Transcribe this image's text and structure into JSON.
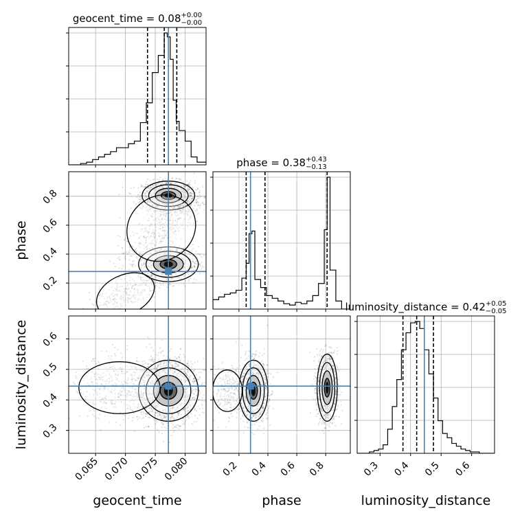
{
  "chart_data": {
    "type": "corner",
    "parameters": [
      "geocent_time",
      "phase",
      "luminosity_distance"
    ],
    "truth_color": "#4682b4",
    "truths": {
      "geocent_time": 0.0772,
      "phase": 0.28,
      "luminosity_distance": 0.445
    },
    "axes": {
      "geocent_time": {
        "lim": [
          0.0605,
          0.0835
        ],
        "ticks": [
          0.065,
          0.07,
          0.075,
          0.08
        ],
        "tick_labels": [
          "0.065",
          "0.070",
          "0.075",
          "0.080"
        ]
      },
      "phase": {
        "lim": [
          0.02,
          0.97
        ],
        "ticks": [
          0.2,
          0.4,
          0.6,
          0.8
        ],
        "tick_labels": [
          "0.2",
          "0.4",
          "0.6",
          "0.8"
        ]
      },
      "luminosity_distance": {
        "lim": [
          0.225,
          0.675
        ],
        "ticks": [
          0.3,
          0.4,
          0.5,
          0.6
        ],
        "tick_labels": [
          "0.3",
          "0.4",
          "0.5",
          "0.6"
        ]
      }
    },
    "titles": {
      "geocent_time": {
        "text": "geocent_time = 0.08",
        "plus": "+0.00",
        "minus": "−0.00"
      },
      "phase": {
        "text": "phase = 0.38",
        "plus": "+0.43",
        "minus": "−0.13"
      },
      "luminosity_distance": {
        "text": "luminosity_distance = 0.42",
        "plus": "+0.05",
        "minus": "−0.05"
      }
    },
    "quantiles": {
      "geocent_time": [
        0.0737,
        0.0765,
        0.0786
      ],
      "phase": [
        0.25,
        0.38,
        0.81
      ],
      "luminosity_distance": [
        0.375,
        0.42,
        0.475
      ]
    },
    "histograms": {
      "geocent_time": {
        "edges": [
          0.0605,
          0.0625,
          0.0635,
          0.0645,
          0.0655,
          0.0665,
          0.0675,
          0.0685,
          0.0695,
          0.0705,
          0.0715,
          0.0725,
          0.0735,
          0.0745,
          0.0755,
          0.0765,
          0.077,
          0.0775,
          0.078,
          0.0785,
          0.079,
          0.08,
          0.081,
          0.082,
          0.0835
        ],
        "counts": [
          0,
          0.01,
          0.02,
          0.04,
          0.06,
          0.08,
          0.1,
          0.13,
          0.13,
          0.16,
          0.18,
          0.32,
          0.47,
          0.7,
          0.83,
          1.0,
          0.97,
          0.8,
          0.49,
          0.33,
          0.26,
          0.18,
          0.06,
          0.02
        ]
      },
      "phase": {
        "edges": [
          0.02,
          0.06,
          0.1,
          0.14,
          0.18,
          0.22,
          0.25,
          0.27,
          0.29,
          0.31,
          0.35,
          0.39,
          0.43,
          0.47,
          0.51,
          0.55,
          0.59,
          0.63,
          0.67,
          0.71,
          0.75,
          0.79,
          0.81,
          0.83,
          0.87,
          0.91,
          0.97
        ],
        "counts": [
          0.07,
          0.09,
          0.11,
          0.12,
          0.14,
          0.23,
          0.34,
          0.56,
          0.58,
          0.22,
          0.16,
          0.1,
          0.08,
          0.06,
          0.04,
          0.03,
          0.05,
          0.04,
          0.06,
          0.1,
          0.19,
          0.59,
          0.98,
          0.29,
          0.06,
          0
        ]
      },
      "luminosity_distance": {
        "edges": [
          0.225,
          0.265,
          0.28,
          0.295,
          0.31,
          0.325,
          0.34,
          0.355,
          0.37,
          0.385,
          0.4,
          0.415,
          0.43,
          0.445,
          0.46,
          0.475,
          0.49,
          0.505,
          0.52,
          0.535,
          0.55,
          0.565,
          0.58,
          0.595,
          0.61,
          0.625,
          0.675
        ],
        "counts": [
          0,
          0.01,
          0.02,
          0.03,
          0.06,
          0.17,
          0.33,
          0.52,
          0.73,
          0.85,
          0.92,
          0.93,
          0.88,
          0.73,
          0.56,
          0.39,
          0.23,
          0.14,
          0.11,
          0.07,
          0.05,
          0.03,
          0.02,
          0.01,
          0.01,
          0
        ]
      }
    },
    "bivariate": [
      {
        "x": "geocent_time",
        "y": "phase",
        "modes": [
          {
            "cx": 0.0772,
            "cy": 0.805,
            "sx": 0.0022,
            "sy": 0.05,
            "n": 1200
          },
          {
            "cx": 0.0772,
            "cy": 0.33,
            "sx": 0.0025,
            "sy": 0.06,
            "n": 800
          },
          {
            "cx": 0.076,
            "cy": 0.58,
            "sx": 0.0035,
            "sy": 0.13,
            "n": 450,
            "corr": 0.8
          },
          {
            "cx": 0.07,
            "cy": 0.12,
            "sx": 0.003,
            "sy": 0.08,
            "n": 300,
            "corr": 0.7
          }
        ]
      },
      {
        "x": "geocent_time",
        "y": "luminosity_distance",
        "modes": [
          {
            "cx": 0.0772,
            "cy": 0.43,
            "sx": 0.0025,
            "sy": 0.05,
            "n": 1700
          },
          {
            "cx": 0.069,
            "cy": 0.44,
            "sx": 0.004,
            "sy": 0.05,
            "n": 500
          }
        ]
      },
      {
        "x": "phase",
        "y": "luminosity_distance",
        "modes": [
          {
            "cx": 0.3,
            "cy": 0.43,
            "sx": 0.05,
            "sy": 0.05,
            "n": 1100
          },
          {
            "cx": 0.81,
            "cy": 0.44,
            "sx": 0.035,
            "sy": 0.055,
            "n": 1100
          },
          {
            "cx": 0.12,
            "cy": 0.43,
            "sx": 0.06,
            "sy": 0.04,
            "n": 300
          }
        ]
      }
    ],
    "grid": true,
    "legend": "none"
  }
}
